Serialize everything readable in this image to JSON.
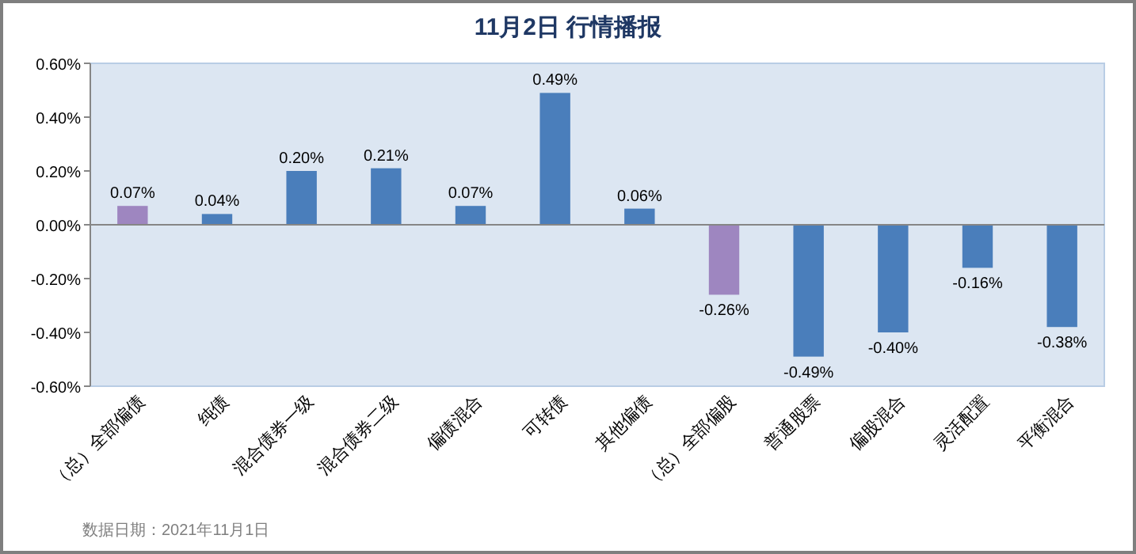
{
  "chart_data": {
    "type": "bar",
    "title": "11月2日  行情播报",
    "categories": [
      "（总）全部偏债",
      "纯债",
      "混合债券一级",
      "混合债券二级",
      "偏债混合",
      "可转债",
      "其他偏债",
      "（总）全部偏股",
      "普通股票",
      "偏股混合",
      "灵活配置",
      "平衡混合"
    ],
    "values": [
      0.07,
      0.04,
      0.2,
      0.21,
      0.07,
      0.49,
      0.06,
      -0.26,
      -0.49,
      -0.4,
      -0.16,
      -0.38
    ],
    "value_labels": [
      "0.07%",
      "0.04%",
      "0.20%",
      "0.21%",
      "0.07%",
      "0.49%",
      "0.06%",
      "-0.26%",
      "-0.49%",
      "-0.40%",
      "-0.16%",
      "-0.38%"
    ],
    "colors": [
      "#9e86c0",
      "#4a7ebb",
      "#4a7ebb",
      "#4a7ebb",
      "#4a7ebb",
      "#4a7ebb",
      "#4a7ebb",
      "#9e86c0",
      "#4a7ebb",
      "#4a7ebb",
      "#4a7ebb",
      "#4a7ebb"
    ],
    "ylim": [
      -0.6,
      0.6
    ],
    "yticks": [
      {
        "value": -0.6,
        "label": "-0.60%"
      },
      {
        "value": -0.4,
        "label": "-0.40%"
      },
      {
        "value": -0.2,
        "label": "-0.20%"
      },
      {
        "value": 0,
        "label": "0.00%"
      },
      {
        "value": 0.2,
        "label": "0.20%"
      },
      {
        "value": 0.4,
        "label": "0.40%"
      },
      {
        "value": 0.6,
        "label": "0.60%"
      }
    ],
    "annotations": [
      "数据日期：2021年11月1日"
    ]
  }
}
